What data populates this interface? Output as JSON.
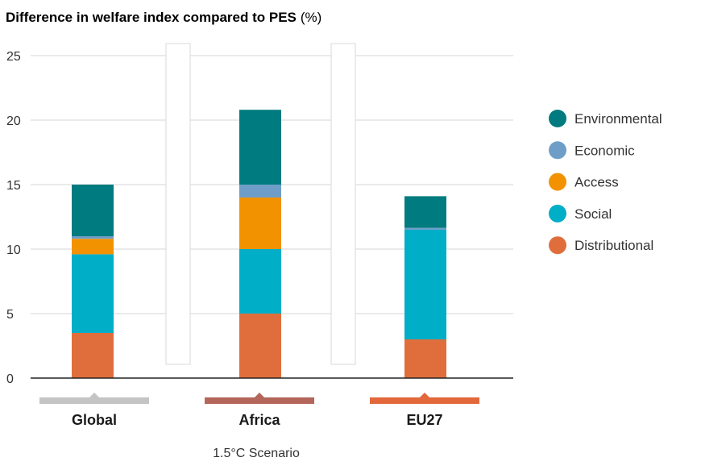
{
  "chart_data": {
    "type": "bar",
    "stacked": true,
    "title_main": "Difference in welfare index compared to PES",
    "title_unit": "(%)",
    "xlabel": "1.5°C Scenario",
    "ylabel": "",
    "ylim": [
      0,
      25
    ],
    "yticks": [
      0,
      5,
      10,
      15,
      20,
      25
    ],
    "grid": true,
    "legend_position": "right",
    "categories": [
      "Global",
      "Africa",
      "EU27"
    ],
    "category_marker_colors": [
      "#c4c4c4",
      "#b4665a",
      "#e2683c"
    ],
    "series": [
      {
        "name": "Distributional",
        "color": "#e06e3c",
        "values": [
          3.5,
          5.0,
          3.0
        ]
      },
      {
        "name": "Social",
        "color": "#00aec7",
        "values": [
          6.1,
          5.0,
          8.5
        ]
      },
      {
        "name": "Access",
        "color": "#f39200",
        "values": [
          1.2,
          4.0,
          0.0
        ]
      },
      {
        "name": "Economic",
        "color": "#6e9ec8",
        "values": [
          0.2,
          1.0,
          0.15
        ]
      },
      {
        "name": "Environmental",
        "color": "#007b7f",
        "values": [
          4.0,
          5.8,
          2.45
        ]
      }
    ],
    "legend_order": [
      "Environmental",
      "Economic",
      "Access",
      "Social",
      "Distributional"
    ]
  }
}
